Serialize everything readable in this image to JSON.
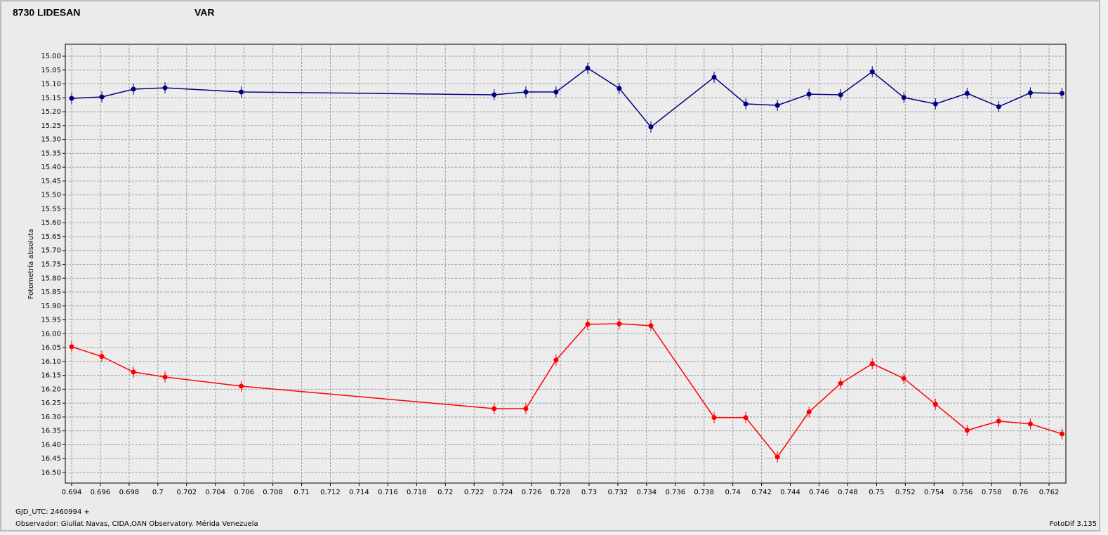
{
  "chart_data": {
    "type": "line",
    "ylabel": "Fotometría absoluta",
    "xlabel": "GJD_UTC: 2460994 +",
    "footer": "Observador: Giuliat Navas, CIDA,OAN Observatory. Mérida Venezuela",
    "software": "FotoDif 3.135",
    "x": [
      0.694,
      0.6961,
      0.6983,
      0.7005,
      0.7058,
      0.7234,
      0.7256,
      0.7277,
      0.7299,
      0.7321,
      0.7343,
      0.7387,
      0.7409,
      0.7431,
      0.7453,
      0.7475,
      0.7497,
      0.7519,
      0.7541,
      0.7563,
      0.7585,
      0.7607,
      0.7629
    ],
    "series": [
      {
        "name": "8730 LIDESAN",
        "color": "#ff0000",
        "values": [
          16.047,
          16.082,
          16.138,
          16.156,
          16.189,
          16.27,
          16.27,
          16.095,
          15.966,
          15.964,
          15.971,
          16.302,
          16.302,
          16.444,
          16.282,
          16.179,
          16.108,
          16.161,
          16.254,
          16.348,
          16.315,
          16.325,
          16.361
        ]
      },
      {
        "name": "VAR",
        "color": "#000080",
        "values": [
          15.152,
          15.147,
          15.119,
          15.114,
          15.129,
          15.139,
          15.129,
          15.129,
          15.043,
          15.116,
          15.255,
          15.076,
          15.172,
          15.177,
          15.137,
          15.139,
          15.056,
          15.149,
          15.172,
          15.134,
          15.182,
          15.132,
          15.134
        ]
      }
    ],
    "xlim": [
      0.69356,
      0.76317
    ],
    "ylim": [
      16.538,
      14.957
    ],
    "xticks": [
      0.694,
      0.696,
      0.698,
      0.7,
      0.702,
      0.704,
      0.706,
      0.708,
      0.71,
      0.712,
      0.714,
      0.716,
      0.718,
      0.72,
      0.722,
      0.724,
      0.726,
      0.728,
      0.73,
      0.732,
      0.734,
      0.736,
      0.738,
      0.74,
      0.742,
      0.744,
      0.746,
      0.748,
      0.75,
      0.752,
      0.754,
      0.756,
      0.758,
      0.76,
      0.762
    ],
    "yticks": [
      {
        "value": 15,
        "label": "15.00"
      },
      {
        "value": 15.05,
        "label": "15.05"
      },
      {
        "value": 15.1,
        "label": "15.10"
      },
      {
        "value": 15.15,
        "label": "15.15"
      },
      {
        "value": 15.2,
        "label": "15.20"
      },
      {
        "value": 15.25,
        "label": "15.25"
      },
      {
        "value": 15.3,
        "label": "15.30"
      },
      {
        "value": 15.35,
        "label": "15.35"
      },
      {
        "value": 15.4,
        "label": "15.40"
      },
      {
        "value": 15.45,
        "label": "15.45"
      },
      {
        "value": 15.5,
        "label": "15.50"
      },
      {
        "value": 15.55,
        "label": "15.55"
      },
      {
        "value": 15.6,
        "label": "15.60"
      },
      {
        "value": 15.65,
        "label": "15.65"
      },
      {
        "value": 15.7,
        "label": "15.70"
      },
      {
        "value": 15.75,
        "label": "15.75"
      },
      {
        "value": 15.8,
        "label": "15.80"
      },
      {
        "value": 15.85,
        "label": "15.85"
      },
      {
        "value": 15.9,
        "label": "15.90"
      },
      {
        "value": 15.95,
        "label": "15.95"
      },
      {
        "value": 16,
        "label": "16.00"
      },
      {
        "value": 16.05,
        "label": "16.05"
      },
      {
        "value": 16.1,
        "label": "16.10"
      },
      {
        "value": 16.15,
        "label": "16.15"
      },
      {
        "value": 16.2,
        "label": "16.20"
      },
      {
        "value": 16.25,
        "label": "16.25"
      },
      {
        "value": 16.3,
        "label": "16.30"
      },
      {
        "value": 16.35,
        "label": "16.35"
      },
      {
        "value": 16.4,
        "label": "16.40"
      },
      {
        "value": 16.45,
        "label": "16.45"
      },
      {
        "value": 16.5,
        "label": "16.50"
      }
    ],
    "grid": true
  }
}
